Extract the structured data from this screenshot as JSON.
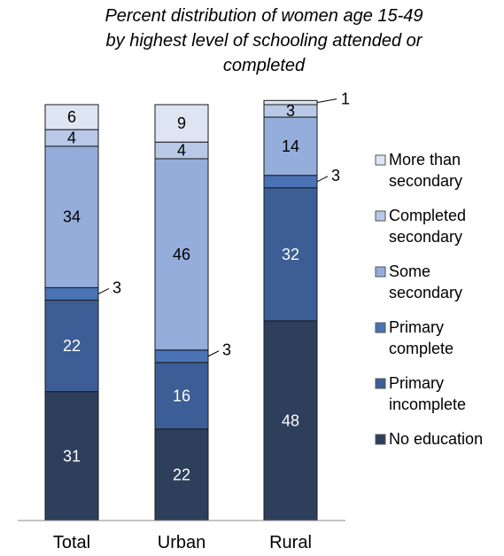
{
  "chart_data": {
    "type": "bar",
    "stacked": true,
    "title_lines": [
      "Percent distribution of women age 15-49",
      "by highest level of schooling attended or",
      "completed"
    ],
    "categories": [
      "Total",
      "Urban",
      "Rural"
    ],
    "ylim": [
      0,
      100
    ],
    "series": [
      {
        "name": "No education",
        "values": [
          31,
          22,
          48
        ],
        "color": "#2e3f5c"
      },
      {
        "name": "Primary incomplete",
        "values": [
          22,
          16,
          32
        ],
        "color": "#3d5d96"
      },
      {
        "name": "Primary complete",
        "values": [
          3,
          3,
          3
        ],
        "color": "#4a73b5"
      },
      {
        "name": "Some secondary",
        "values": [
          34,
          46,
          14
        ],
        "color": "#94addb"
      },
      {
        "name": "Completed secondary",
        "values": [
          4,
          4,
          3
        ],
        "color": "#b8c8e6"
      },
      {
        "name": "More than secondary",
        "values": [
          6,
          9,
          1
        ],
        "color": "#dde5f2"
      }
    ],
    "legend_order": [
      {
        "series": 5,
        "lines": [
          "More than",
          "secondary"
        ]
      },
      {
        "series": 4,
        "lines": [
          "Completed",
          "secondary"
        ]
      },
      {
        "series": 3,
        "lines": [
          "Some",
          "secondary"
        ]
      },
      {
        "series": 2,
        "lines": [
          "Primary",
          "complete"
        ]
      },
      {
        "series": 1,
        "lines": [
          "Primary",
          "incomplete"
        ]
      },
      {
        "series": 0,
        "lines": [
          "No education"
        ]
      }
    ],
    "legend_position": "right",
    "grid": false
  }
}
